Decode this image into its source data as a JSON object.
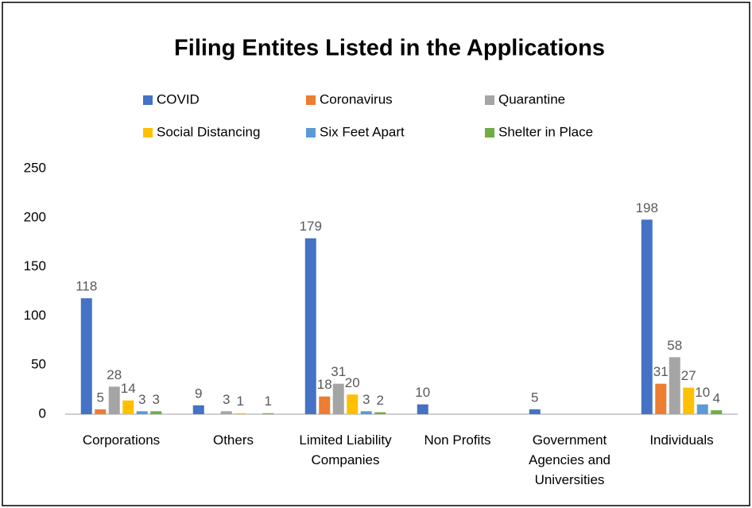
{
  "chart_data": {
    "type": "bar",
    "title": "Filing Entites Listed in the Applications",
    "categories": [
      "Corporations",
      "Others",
      "Limited Liability Companies",
      "Non Profits",
      "Government Agencies and Universities",
      "Individuals"
    ],
    "series": [
      {
        "name": "COVID",
        "color": "#4472c4",
        "values": [
          118,
          9,
          179,
          10,
          5,
          198
        ]
      },
      {
        "name": "Coronavirus",
        "color": "#ed7d31",
        "values": [
          5,
          null,
          18,
          null,
          null,
          31
        ]
      },
      {
        "name": "Quarantine",
        "color": "#a5a5a5",
        "values": [
          28,
          3,
          31,
          null,
          null,
          58
        ]
      },
      {
        "name": "Social Distancing",
        "color": "#ffc000",
        "values": [
          14,
          1,
          20,
          null,
          null,
          27
        ]
      },
      {
        "name": "Six Feet Apart",
        "color": "#5b9bd5",
        "values": [
          3,
          null,
          3,
          null,
          null,
          10
        ]
      },
      {
        "name": "Shelter in Place",
        "color": "#70ad47",
        "values": [
          3,
          1,
          2,
          null,
          null,
          4
        ]
      }
    ],
    "ylim": [
      0,
      250
    ],
    "yticks": [
      0,
      50,
      100,
      150,
      200,
      250
    ],
    "grid": false,
    "legend": "top"
  }
}
